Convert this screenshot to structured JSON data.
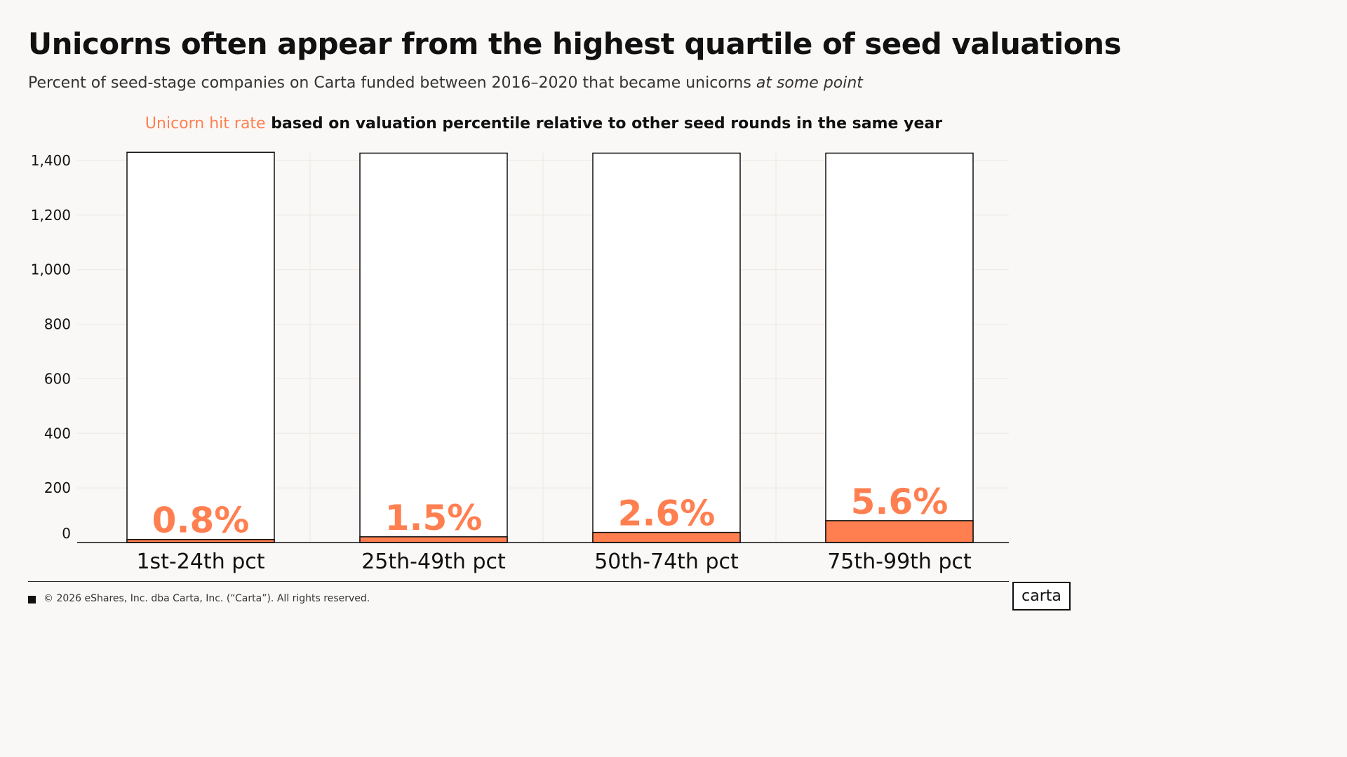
{
  "header": {
    "title": "Unicorns often appear from the highest quartile of seed valuations",
    "subtitle_main": "Percent of seed-stage companies on Carta funded between 2016–2020 that became unicorns ",
    "subtitle_emphasis": "at some point"
  },
  "chart_heading": {
    "highlight": "Unicorn hit rate",
    "rest": " based on valuation percentile relative to other seed rounds in the same year"
  },
  "colors": {
    "accent": "#ff7f50",
    "bar_outline": "#111111",
    "bar_fill": "#ffffff",
    "grid": "#ebe7e3",
    "text": "#111111"
  },
  "chart_data": {
    "type": "bar",
    "title": "Unicorn hit rate based on valuation percentile relative to other seed rounds in the same year",
    "xlabel": "",
    "ylabel": "",
    "ylim": [
      0,
      1400
    ],
    "yticks": [
      0,
      200,
      400,
      600,
      800,
      1000,
      1200,
      1400
    ],
    "ytick_labels": [
      "0",
      "200",
      "400",
      "600",
      "800",
      "1,000",
      "1,200",
      "1,400"
    ],
    "categories": [
      "1st-24th pct",
      "25th-49th pct",
      "50th-74th pct",
      "75th-99th pct"
    ],
    "series": [
      {
        "values": [
          1430,
          1427,
          1427,
          1427
        ]
      },
      {
        "values": [
          11,
          21,
          37,
          80
        ]
      }
    ],
    "data_labels": [
      "0.8%",
      "1.5%",
      "2.6%",
      "5.6%"
    ],
    "grid": true,
    "legend": "none"
  },
  "footer": {
    "copyright": "© 2026 eShares, Inc. dba Carta, Inc. (“Carta”). All rights reserved.",
    "logo_text": "carta"
  }
}
